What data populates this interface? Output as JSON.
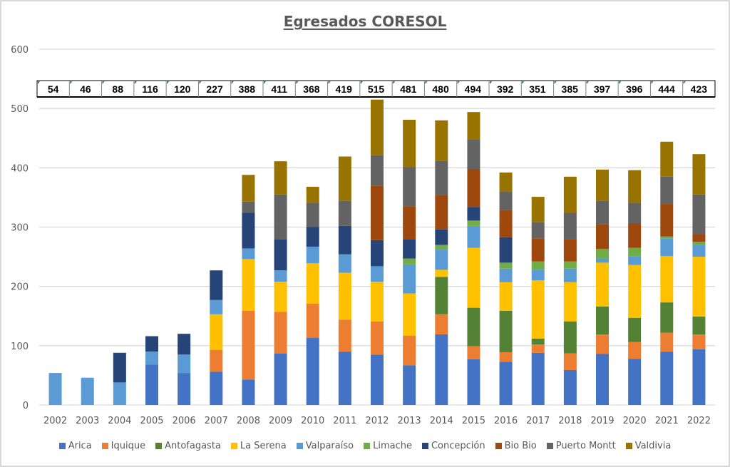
{
  "chart_data": {
    "type": "bar",
    "stacked": true,
    "title": "Egresados CORESOL",
    "xlabel": "",
    "ylabel": "",
    "ylim": [
      0,
      600
    ],
    "yticks": [
      "0",
      "100",
      "200",
      "300",
      "400",
      "500",
      "600"
    ],
    "grid": true,
    "legend_position": "bottom",
    "categories": [
      "2002",
      "2003",
      "2004",
      "2005",
      "2006",
      "2007",
      "2008",
      "2009",
      "2010",
      "2011",
      "2012",
      "2013",
      "2014",
      "2015",
      "2016",
      "2017",
      "2018",
      "2019",
      "2020",
      "2021",
      "2022"
    ],
    "totals": [
      "54",
      "46",
      "88",
      "116",
      "120",
      "227",
      "388",
      "411",
      "368",
      "419",
      "515",
      "481",
      "480",
      "494",
      "392",
      "351",
      "385",
      "397",
      "396",
      "444",
      "423"
    ],
    "series": [
      {
        "name": "Arica",
        "color": "#4472c4",
        "values": [
          0,
          0,
          0,
          68,
          54,
          56,
          43,
          87,
          113,
          90,
          85,
          67,
          119,
          77,
          73,
          88,
          59,
          86,
          78,
          90,
          94
        ]
      },
      {
        "name": "Iquique",
        "color": "#ed7d31",
        "values": [
          0,
          0,
          0,
          0,
          0,
          37,
          116,
          70,
          58,
          54,
          56,
          50,
          34,
          22,
          16,
          14,
          28,
          33,
          28,
          32,
          25
        ]
      },
      {
        "name": "Antofagasta",
        "color": "#548235",
        "values": [
          0,
          0,
          0,
          0,
          0,
          0,
          0,
          0,
          0,
          0,
          0,
          0,
          63,
          65,
          70,
          10,
          54,
          47,
          41,
          51,
          30
        ]
      },
      {
        "name": "La Serena",
        "color": "#ffc000",
        "values": [
          0,
          0,
          0,
          0,
          0,
          60,
          87,
          51,
          68,
          79,
          67,
          71,
          12,
          101,
          48,
          98,
          66,
          74,
          89,
          78,
          101
        ]
      },
      {
        "name": "Valparaíso",
        "color": "#5b9bd5",
        "values": [
          54,
          46,
          38,
          22,
          31,
          24,
          18,
          19,
          28,
          31,
          26,
          49,
          34,
          37,
          23,
          18,
          23,
          7,
          15,
          30,
          20
        ]
      },
      {
        "name": "Limache",
        "color": "#70ad47",
        "values": [
          0,
          0,
          0,
          0,
          0,
          0,
          0,
          0,
          0,
          0,
          0,
          10,
          8,
          9,
          10,
          14,
          12,
          16,
          14,
          3,
          5
        ]
      },
      {
        "name": "Concepción",
        "color": "#264478",
        "values": [
          0,
          0,
          50,
          26,
          35,
          50,
          60,
          52,
          33,
          48,
          44,
          32,
          26,
          23,
          43,
          0,
          0,
          0,
          0,
          0,
          0
        ]
      },
      {
        "name": "Bio Bio",
        "color": "#9e480e",
        "values": [
          0,
          0,
          0,
          0,
          0,
          0,
          0,
          0,
          0,
          0,
          92,
          56,
          58,
          64,
          46,
          39,
          37,
          42,
          41,
          55,
          13
        ]
      },
      {
        "name": "Puerto Montt",
        "color": "#636363",
        "values": [
          0,
          0,
          0,
          0,
          0,
          0,
          19,
          76,
          41,
          42,
          51,
          66,
          58,
          50,
          31,
          27,
          45,
          39,
          35,
          46,
          67
        ]
      },
      {
        "name": "Valdivia",
        "color": "#997300",
        "values": [
          0,
          0,
          0,
          0,
          0,
          0,
          45,
          56,
          27,
          75,
          94,
          80,
          68,
          46,
          32,
          43,
          61,
          53,
          55,
          59,
          68
        ]
      }
    ]
  }
}
